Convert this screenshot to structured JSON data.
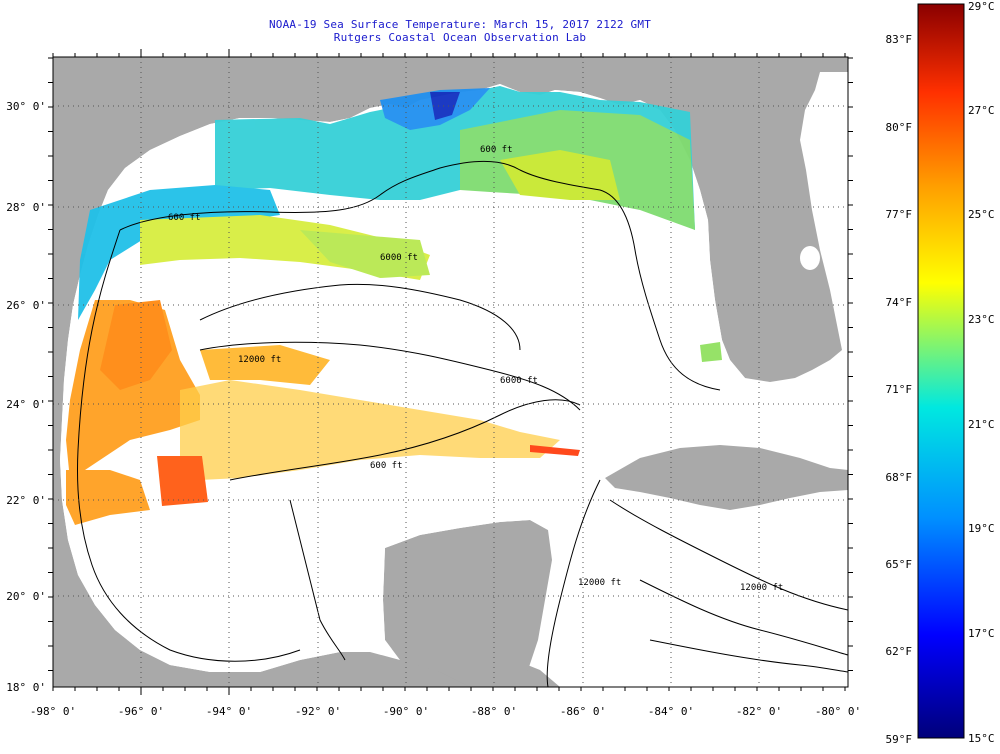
{
  "title": "NOAA-19 Sea Surface Temperature:  March 15, 2017 2122 GMT",
  "subtitle": "Rutgers Coastal Ocean Observation Lab",
  "lon_ticks": [
    "-98° 0'",
    "-96° 0'",
    "-94° 0'",
    "-92° 0'",
    "-90° 0'",
    "-88° 0'",
    "-86° 0'",
    "-84° 0'",
    "-82° 0'",
    "-80° 0'"
  ],
  "lat_ticks": [
    "30° 0'",
    "28° 0'",
    "26° 0'",
    "24° 0'",
    "22° 0'",
    "20° 0'",
    "18° 0'"
  ],
  "contour_labels": [
    "600 ft",
    "600 ft",
    "6000 ft",
    "12000 ft",
    "6000 ft",
    "600 ft",
    "12000 ft",
    "12000 ft"
  ],
  "colorbar": {
    "celsius_ticks": [
      "29°C",
      "27°C",
      "25°C",
      "23°C",
      "21°C",
      "19°C",
      "17°C",
      "15°C"
    ],
    "fahrenheit_ticks": [
      "83°F",
      "80°F",
      "77°F",
      "74°F",
      "71°F",
      "68°F",
      "65°F",
      "62°F",
      "59°F"
    ],
    "range_c": [
      15,
      29
    ],
    "colors": [
      "#00007a",
      "#0000ff",
      "#0090ff",
      "#00e8e0",
      "#ffff00",
      "#ffa000",
      "#ff3000",
      "#8a0000"
    ]
  },
  "colors": {
    "land": "#a9a9a9",
    "ocean_no_data": "#ffffff",
    "title": "#1a1acd"
  }
}
